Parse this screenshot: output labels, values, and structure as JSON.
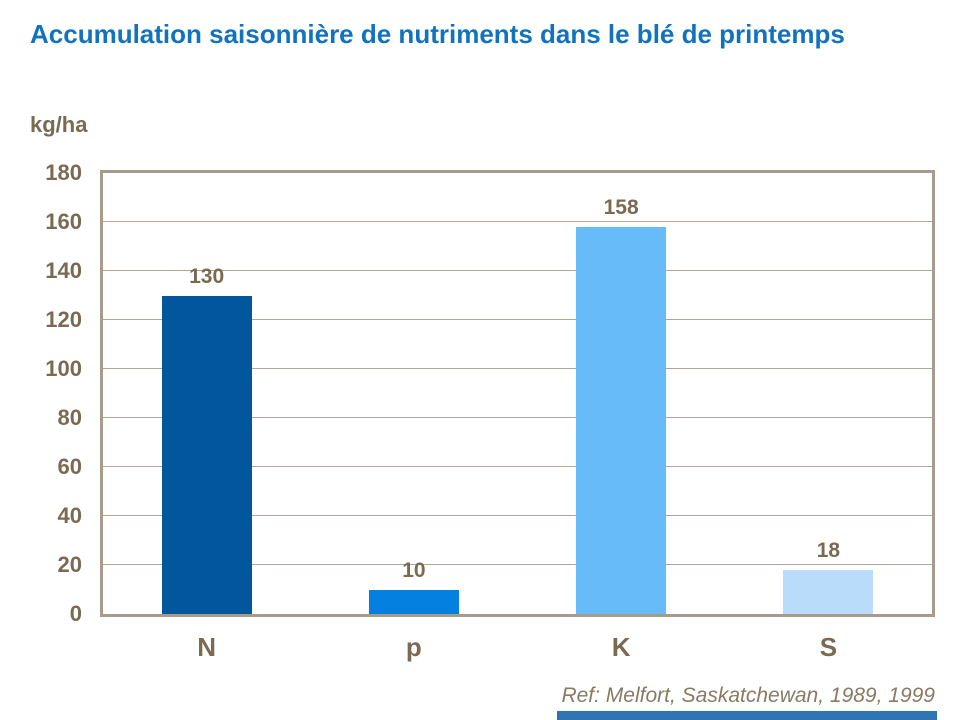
{
  "slide": {
    "title": "Accumulation saisonnière de nutriments dans le blé de printemps",
    "unit_label": "kg/ha",
    "reference": "Ref: Melfort, Saskatchewan, 1989, 1999"
  },
  "colors": {
    "background": "#FFFFFF",
    "title": "#1173BE",
    "axis_text": "#7B6A52",
    "grid": "#B2A797",
    "plot_border": "#A89B8B",
    "reference_text": "#8A7A64",
    "footer_bar": "#2E75B6"
  },
  "chart_data": {
    "type": "bar",
    "title": "Accumulation saisonnière de nutriments dans le blé de printemps",
    "xlabel": "",
    "ylabel": "kg/ha",
    "categories": [
      "N",
      "p",
      "K",
      "S"
    ],
    "values": [
      130,
      10,
      158,
      18
    ],
    "data_labels_shown": true,
    "bar_colors": [
      "#02569B",
      "#0380E0",
      "#67BBF8",
      "#BADCFB"
    ],
    "ylim": [
      0,
      180
    ],
    "yticks": [
      0,
      20,
      40,
      60,
      80,
      100,
      120,
      140,
      160,
      180
    ],
    "grid": "horizontal",
    "legend_position": "none",
    "annotation": "Ref: Melfort, Saskatchewan, 1989, 1999"
  }
}
